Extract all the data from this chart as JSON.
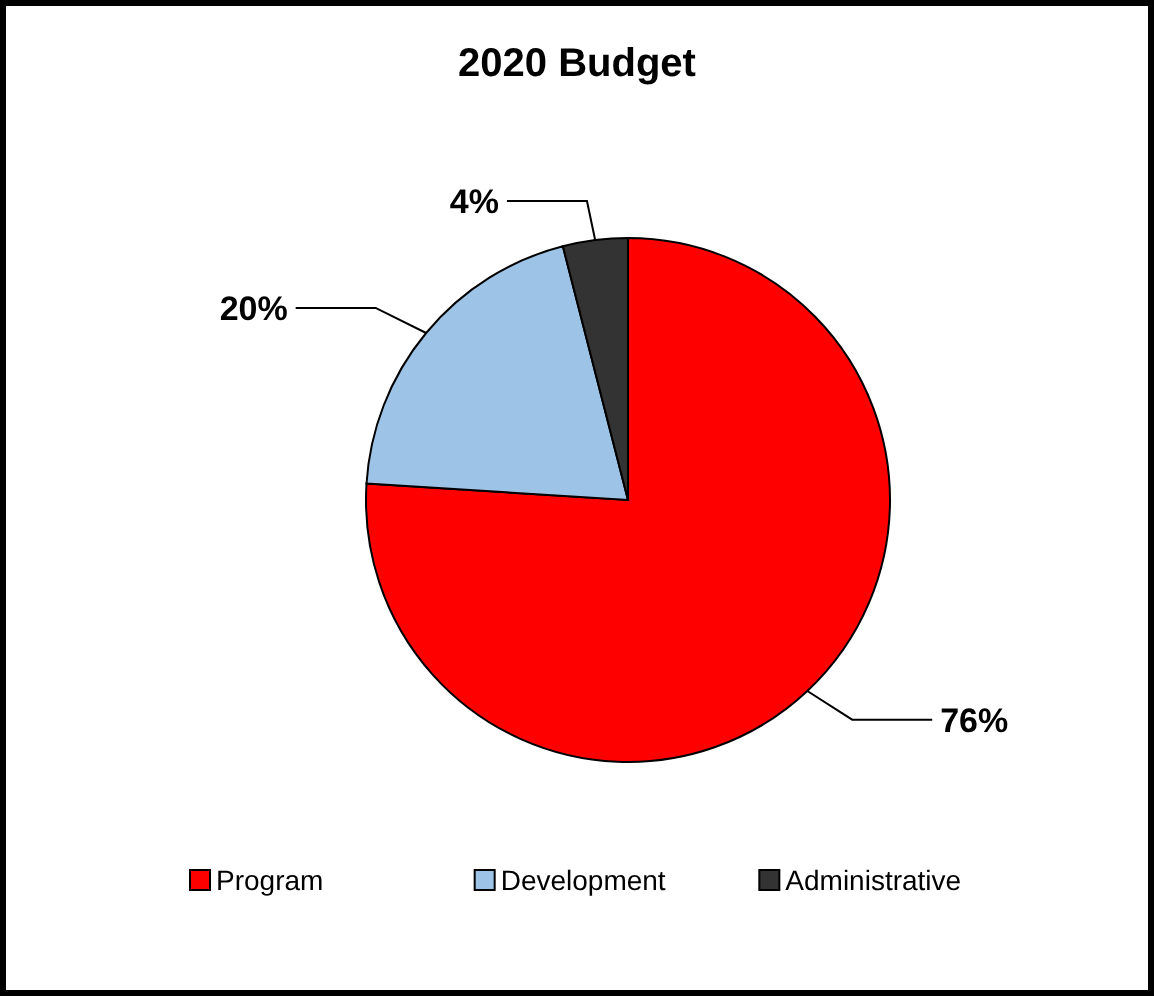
{
  "chart_data": {
    "type": "pie",
    "title": "2020 Budget",
    "categories": [
      "Program",
      "Development",
      "Administrative"
    ],
    "values": [
      76,
      20,
      4
    ],
    "colors": [
      "#ff0000",
      "#9dc3e6",
      "#333333"
    ],
    "value_labels": [
      "76%",
      "20%",
      "4%"
    ],
    "legend": "bottom"
  }
}
